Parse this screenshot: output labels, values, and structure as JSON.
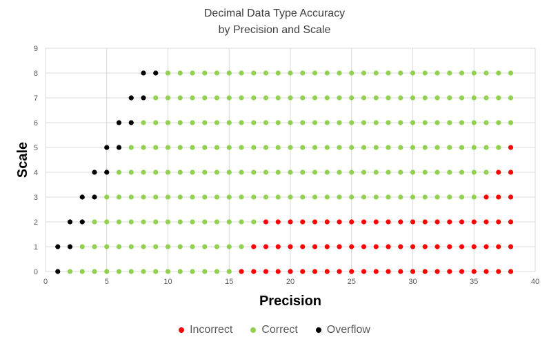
{
  "chart_data": {
    "type": "scatter",
    "title": [
      "Decimal Data Type Accuracy",
      "by Precision and Scale"
    ],
    "xlabel": "Precision",
    "ylabel": "Scale",
    "xlim": [
      0,
      40
    ],
    "ylim": [
      0,
      9
    ],
    "xticks": [
      0,
      5,
      10,
      15,
      20,
      25,
      30,
      35,
      40
    ],
    "yticks": [
      0,
      1,
      2,
      3,
      4,
      5,
      6,
      7,
      8,
      9
    ],
    "grid": true,
    "legend_position": "bottom",
    "series": [
      {
        "name": "Incorrect",
        "color": "#ff0000",
        "points_by_scale": [
          {
            "scale": 0,
            "precision": [
              16,
              17,
              18,
              19,
              20,
              21,
              22,
              23,
              24,
              25,
              26,
              27,
              28,
              29,
              30,
              31,
              32,
              33,
              34,
              35,
              36,
              37,
              38
            ]
          },
          {
            "scale": 1,
            "precision": [
              17,
              18,
              19,
              20,
              21,
              22,
              23,
              24,
              25,
              26,
              27,
              28,
              29,
              30,
              31,
              32,
              33,
              34,
              35,
              36,
              37,
              38
            ]
          },
          {
            "scale": 2,
            "precision": [
              18,
              19,
              20,
              21,
              22,
              23,
              24,
              25,
              26,
              27,
              28,
              29,
              30,
              31,
              32,
              33,
              34,
              35,
              36,
              37,
              38
            ]
          },
          {
            "scale": 3,
            "precision": [
              36,
              37,
              38
            ]
          },
          {
            "scale": 4,
            "precision": [
              37,
              38
            ]
          },
          {
            "scale": 5,
            "precision": [
              38
            ]
          }
        ]
      },
      {
        "name": "Correct",
        "color": "#92d050",
        "points_by_scale": [
          {
            "scale": 0,
            "precision": [
              2,
              3,
              4,
              5,
              6,
              7,
              8,
              9,
              10,
              11,
              12,
              13,
              14,
              15
            ]
          },
          {
            "scale": 1,
            "precision": [
              3,
              4,
              5,
              6,
              7,
              8,
              9,
              10,
              11,
              12,
              13,
              14,
              15,
              16
            ]
          },
          {
            "scale": 2,
            "precision": [
              4,
              5,
              6,
              7,
              8,
              9,
              10,
              11,
              12,
              13,
              14,
              15,
              16,
              17
            ]
          },
          {
            "scale": 3,
            "precision": [
              5,
              6,
              7,
              8,
              9,
              10,
              11,
              12,
              13,
              14,
              15,
              16,
              17,
              18,
              19,
              20,
              21,
              22,
              23,
              24,
              25,
              26,
              27,
              28,
              29,
              30,
              31,
              32,
              33,
              34,
              35
            ]
          },
          {
            "scale": 4,
            "precision": [
              6,
              7,
              8,
              9,
              10,
              11,
              12,
              13,
              14,
              15,
              16,
              17,
              18,
              19,
              20,
              21,
              22,
              23,
              24,
              25,
              26,
              27,
              28,
              29,
              30,
              31,
              32,
              33,
              34,
              35,
              36
            ]
          },
          {
            "scale": 5,
            "precision": [
              7,
              8,
              9,
              10,
              11,
              12,
              13,
              14,
              15,
              16,
              17,
              18,
              19,
              20,
              21,
              22,
              23,
              24,
              25,
              26,
              27,
              28,
              29,
              30,
              31,
              32,
              33,
              34,
              35,
              36,
              37
            ]
          },
          {
            "scale": 6,
            "precision": [
              8,
              9,
              10,
              11,
              12,
              13,
              14,
              15,
              16,
              17,
              18,
              19,
              20,
              21,
              22,
              23,
              24,
              25,
              26,
              27,
              28,
              29,
              30,
              31,
              32,
              33,
              34,
              35,
              36,
              37,
              38
            ]
          },
          {
            "scale": 7,
            "precision": [
              9,
              10,
              11,
              12,
              13,
              14,
              15,
              16,
              17,
              18,
              19,
              20,
              21,
              22,
              23,
              24,
              25,
              26,
              27,
              28,
              29,
              30,
              31,
              32,
              33,
              34,
              35,
              36,
              37,
              38
            ]
          },
          {
            "scale": 8,
            "precision": [
              10,
              11,
              12,
              13,
              14,
              15,
              16,
              17,
              18,
              19,
              20,
              21,
              22,
              23,
              24,
              25,
              26,
              27,
              28,
              29,
              30,
              31,
              32,
              33,
              34,
              35,
              36,
              37,
              38
            ]
          }
        ]
      },
      {
        "name": "Overflow",
        "color": "#000000",
        "points_by_scale": [
          {
            "scale": 0,
            "precision": [
              1
            ]
          },
          {
            "scale": 1,
            "precision": [
              1,
              2
            ]
          },
          {
            "scale": 2,
            "precision": [
              2,
              3
            ]
          },
          {
            "scale": 3,
            "precision": [
              3,
              4
            ]
          },
          {
            "scale": 4,
            "precision": [
              4,
              5
            ]
          },
          {
            "scale": 5,
            "precision": [
              5,
              6
            ]
          },
          {
            "scale": 6,
            "precision": [
              6,
              7
            ]
          },
          {
            "scale": 7,
            "precision": [
              7,
              8
            ]
          },
          {
            "scale": 8,
            "precision": [
              8,
              9
            ]
          }
        ]
      }
    ]
  }
}
